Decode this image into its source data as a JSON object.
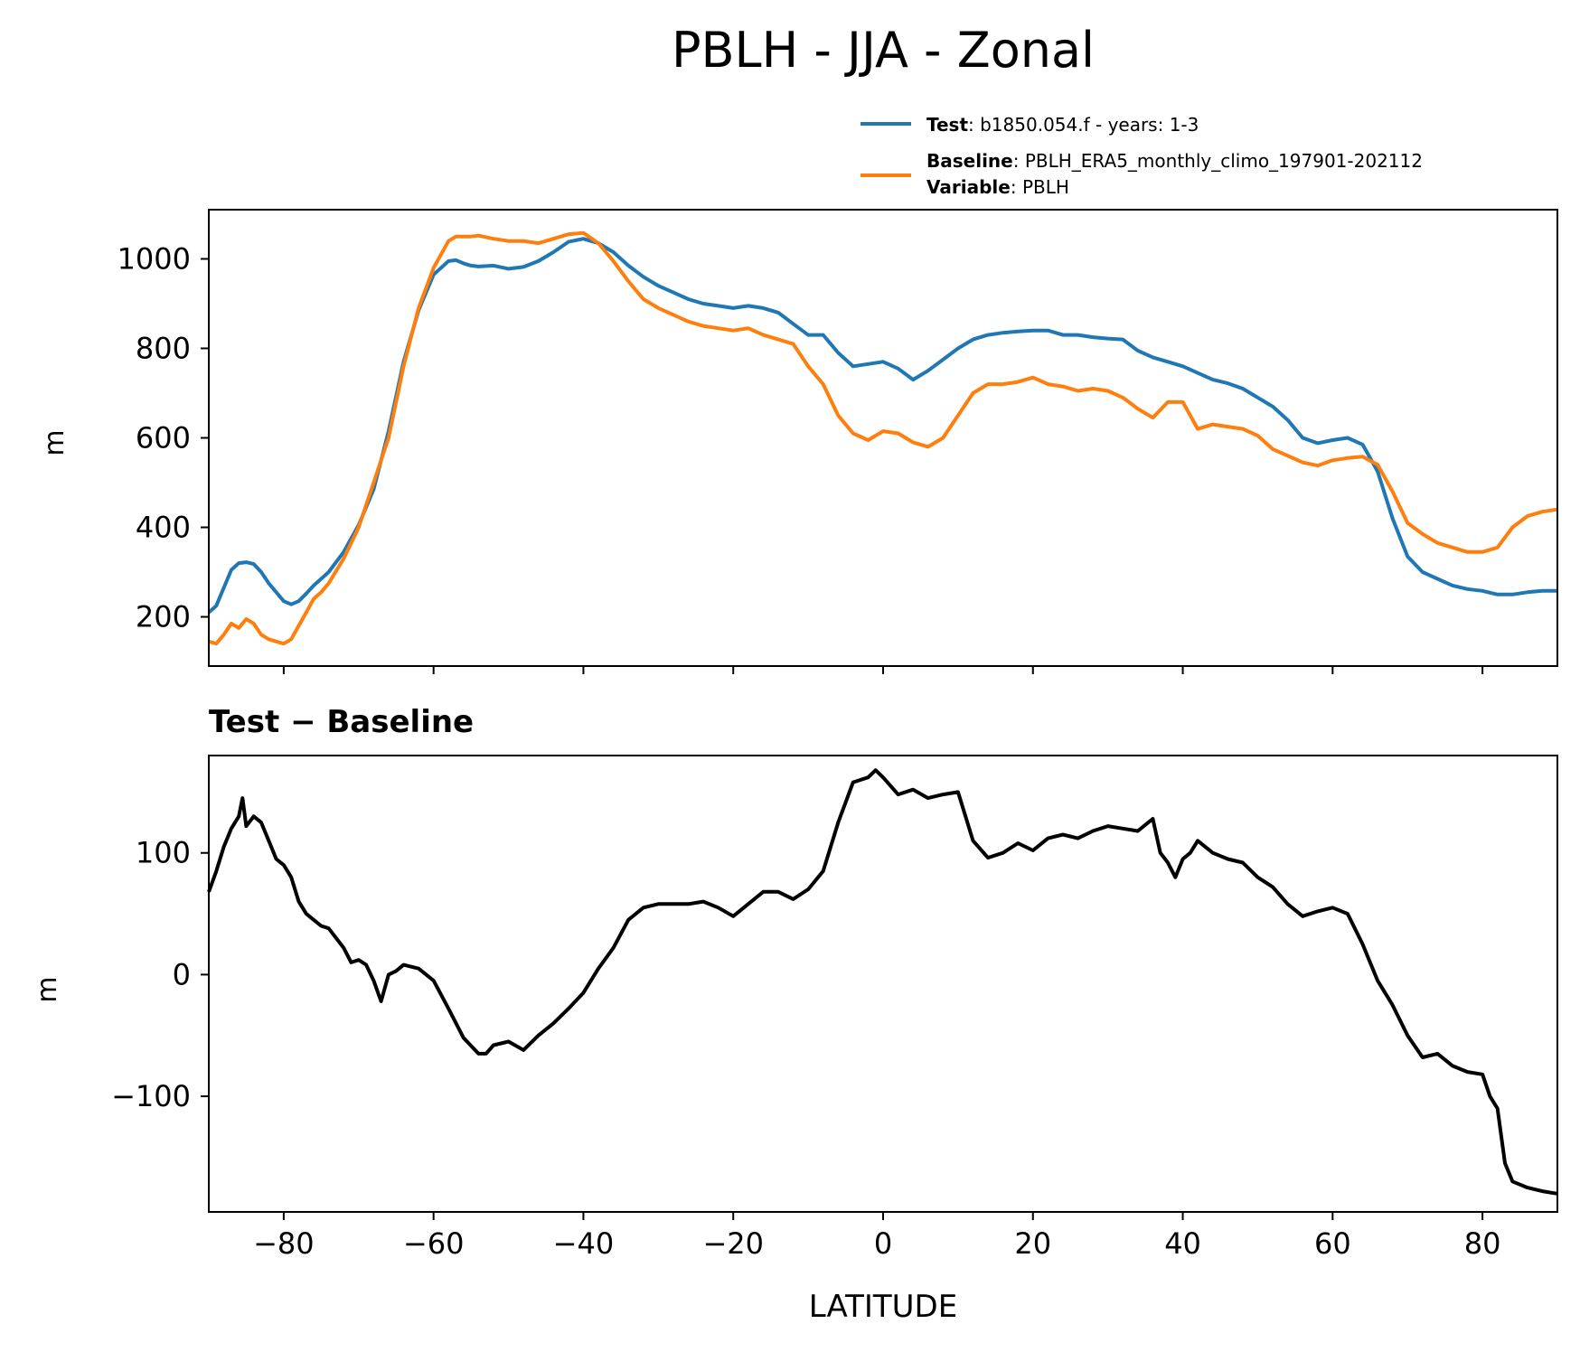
{
  "figure": {
    "title": "PBLH - JJA - Zonal"
  },
  "legend": {
    "placement": "above top panel, right",
    "entries": [
      {
        "bold": "Test",
        "text": ": b1850.054.f - years: 1-3",
        "color": "#1f77b4"
      },
      {
        "bold": "Baseline",
        "text": ": PBLH_ERA5_monthly_climo_197901-202112",
        "color": "#ff7f0e"
      },
      {
        "bold": "Variable",
        "text": ": PBLH"
      }
    ]
  },
  "chart_data": [
    {
      "type": "line",
      "title": "",
      "xlabel": "",
      "ylabel": "m",
      "xlim": [
        -90,
        90
      ],
      "ylim": [
        90,
        1110
      ],
      "yticks": [
        200,
        400,
        600,
        800,
        1000
      ],
      "xticks": [
        -80,
        -60,
        -40,
        -20,
        0,
        20,
        40,
        60,
        80
      ],
      "show_xtick_labels": false,
      "grid": false,
      "series": [
        {
          "name": "Test",
          "color": "#1f77b4",
          "x": [
            -90,
            -89,
            -88,
            -87,
            -86,
            -85,
            -84,
            -83,
            -82,
            -81,
            -80,
            -79,
            -78,
            -77,
            -76,
            -75,
            -74,
            -72,
            -70,
            -68,
            -66,
            -64,
            -62,
            -60,
            -58,
            -57,
            -56,
            -55,
            -54,
            -52,
            -50,
            -48,
            -46,
            -44,
            -42,
            -40,
            -38,
            -36,
            -34,
            -32,
            -30,
            -28,
            -26,
            -24,
            -22,
            -20,
            -18,
            -16,
            -14,
            -12,
            -10,
            -8,
            -6,
            -4,
            -2,
            0,
            2,
            4,
            6,
            8,
            10,
            12,
            14,
            16,
            18,
            20,
            22,
            24,
            26,
            28,
            30,
            32,
            34,
            36,
            38,
            40,
            42,
            44,
            46,
            48,
            50,
            52,
            54,
            56,
            58,
            60,
            62,
            64,
            66,
            68,
            70,
            72,
            74,
            76,
            78,
            80,
            82,
            84,
            86,
            88,
            90
          ],
          "y": [
            210,
            225,
            265,
            305,
            320,
            322,
            318,
            300,
            275,
            255,
            235,
            228,
            235,
            252,
            270,
            285,
            300,
            345,
            405,
            485,
            615,
            770,
            885,
            965,
            995,
            997,
            990,
            985,
            983,
            985,
            978,
            982,
            995,
            1015,
            1038,
            1045,
            1035,
            1015,
            985,
            960,
            940,
            925,
            910,
            900,
            895,
            890,
            895,
            890,
            880,
            855,
            830,
            830,
            790,
            760,
            765,
            770,
            755,
            730,
            750,
            775,
            800,
            820,
            830,
            835,
            838,
            840,
            840,
            830,
            830,
            825,
            822,
            820,
            795,
            780,
            770,
            760,
            745,
            730,
            722,
            710,
            690,
            670,
            640,
            600,
            588,
            595,
            600,
            585,
            525,
            420,
            335,
            300,
            285,
            270,
            262,
            258,
            250,
            250,
            255,
            258,
            258
          ]
        },
        {
          "name": "Baseline",
          "color": "#ff7f0e",
          "x": [
            -90,
            -89,
            -88,
            -87,
            -86,
            -85,
            -84,
            -83,
            -82,
            -81,
            -80,
            -79,
            -78,
            -77,
            -76,
            -75,
            -74,
            -72,
            -70,
            -68,
            -66,
            -64,
            -62,
            -60,
            -58,
            -57,
            -56,
            -55,
            -54,
            -52,
            -50,
            -48,
            -46,
            -44,
            -42,
            -40,
            -38,
            -36,
            -34,
            -32,
            -30,
            -28,
            -26,
            -24,
            -22,
            -20,
            -18,
            -16,
            -14,
            -12,
            -10,
            -8,
            -6,
            -4,
            -2,
            0,
            2,
            4,
            6,
            8,
            10,
            12,
            14,
            16,
            18,
            20,
            22,
            24,
            26,
            28,
            30,
            32,
            34,
            36,
            38,
            40,
            42,
            44,
            46,
            48,
            50,
            52,
            54,
            56,
            58,
            60,
            62,
            64,
            66,
            68,
            70,
            72,
            74,
            76,
            78,
            80,
            82,
            84,
            86,
            88,
            90
          ],
          "y": [
            145,
            140,
            160,
            185,
            175,
            195,
            185,
            160,
            150,
            145,
            140,
            150,
            180,
            210,
            240,
            255,
            275,
            330,
            400,
            500,
            600,
            760,
            890,
            980,
            1040,
            1050,
            1050,
            1050,
            1052,
            1045,
            1040,
            1040,
            1035,
            1045,
            1055,
            1058,
            1035,
            995,
            950,
            910,
            890,
            875,
            860,
            850,
            845,
            840,
            845,
            830,
            820,
            810,
            760,
            720,
            650,
            610,
            595,
            615,
            610,
            590,
            580,
            600,
            650,
            700,
            720,
            720,
            725,
            735,
            720,
            715,
            705,
            710,
            705,
            690,
            665,
            645,
            680,
            680,
            620,
            630,
            625,
            620,
            605,
            575,
            560,
            545,
            538,
            550,
            555,
            558,
            540,
            480,
            410,
            385,
            365,
            355,
            345,
            345,
            355,
            400,
            425,
            435,
            440
          ]
        }
      ]
    },
    {
      "type": "line",
      "title": "Test − Baseline",
      "xlabel": "LATITUDE",
      "ylabel": "m",
      "xlim": [
        -90,
        90
      ],
      "ylim": [
        -195,
        180
      ],
      "yticks": [
        -100,
        0,
        100
      ],
      "ytick_labels": [
        "−100",
        "0",
        "100"
      ],
      "xticks": [
        -80,
        -60,
        -40,
        -20,
        0,
        20,
        40,
        60,
        80
      ],
      "xtick_labels": [
        "−80",
        "−60",
        "−40",
        "−20",
        "0",
        "20",
        "40",
        "60",
        "80"
      ],
      "grid": false,
      "series": [
        {
          "color": "#000000",
          "x": [
            -90,
            -89,
            -88,
            -87,
            -86,
            -85.5,
            -85,
            -84,
            -83,
            -82,
            -81,
            -80,
            -79,
            -78,
            -77,
            -76,
            -75,
            -74,
            -73,
            -72,
            -71,
            -70,
            -69,
            -68,
            -67,
            -66,
            -65,
            -64,
            -62,
            -60,
            -58,
            -56,
            -54,
            -53,
            -52,
            -50,
            -48,
            -46,
            -44,
            -42,
            -40,
            -38,
            -36,
            -34,
            -32,
            -30,
            -28,
            -26,
            -24,
            -22,
            -20,
            -18,
            -16,
            -14,
            -12,
            -10,
            -8,
            -6,
            -4,
            -2,
            -1,
            0,
            2,
            4,
            6,
            8,
            10,
            12,
            14,
            16,
            18,
            20,
            22,
            24,
            26,
            28,
            30,
            32,
            34,
            36,
            37,
            38,
            39,
            40,
            41,
            42,
            44,
            46,
            48,
            50,
            52,
            54,
            56,
            58,
            60,
            62,
            64,
            66,
            68,
            70,
            72,
            74,
            76,
            78,
            80,
            81,
            82,
            83,
            84,
            86,
            88,
            90
          ],
          "y": [
            68,
            85,
            105,
            120,
            130,
            145,
            122,
            130,
            125,
            110,
            95,
            90,
            80,
            60,
            50,
            45,
            40,
            38,
            30,
            22,
            10,
            12,
            8,
            -5,
            -22,
            0,
            3,
            8,
            5,
            -5,
            -28,
            -52,
            -65,
            -65,
            -58,
            -55,
            -62,
            -50,
            -40,
            -28,
            -15,
            5,
            22,
            45,
            55,
            58,
            58,
            58,
            60,
            55,
            48,
            58,
            68,
            68,
            62,
            70,
            85,
            125,
            158,
            162,
            168,
            162,
            148,
            152,
            145,
            148,
            150,
            110,
            96,
            100,
            108,
            102,
            112,
            115,
            112,
            118,
            122,
            120,
            118,
            128,
            100,
            92,
            80,
            95,
            100,
            110,
            100,
            95,
            92,
            80,
            72,
            58,
            48,
            52,
            55,
            50,
            25,
            -5,
            -25,
            -50,
            -68,
            -65,
            -75,
            -80,
            -82,
            -100,
            -110,
            -155,
            -170,
            -175,
            -178,
            -180
          ]
        }
      ]
    }
  ]
}
